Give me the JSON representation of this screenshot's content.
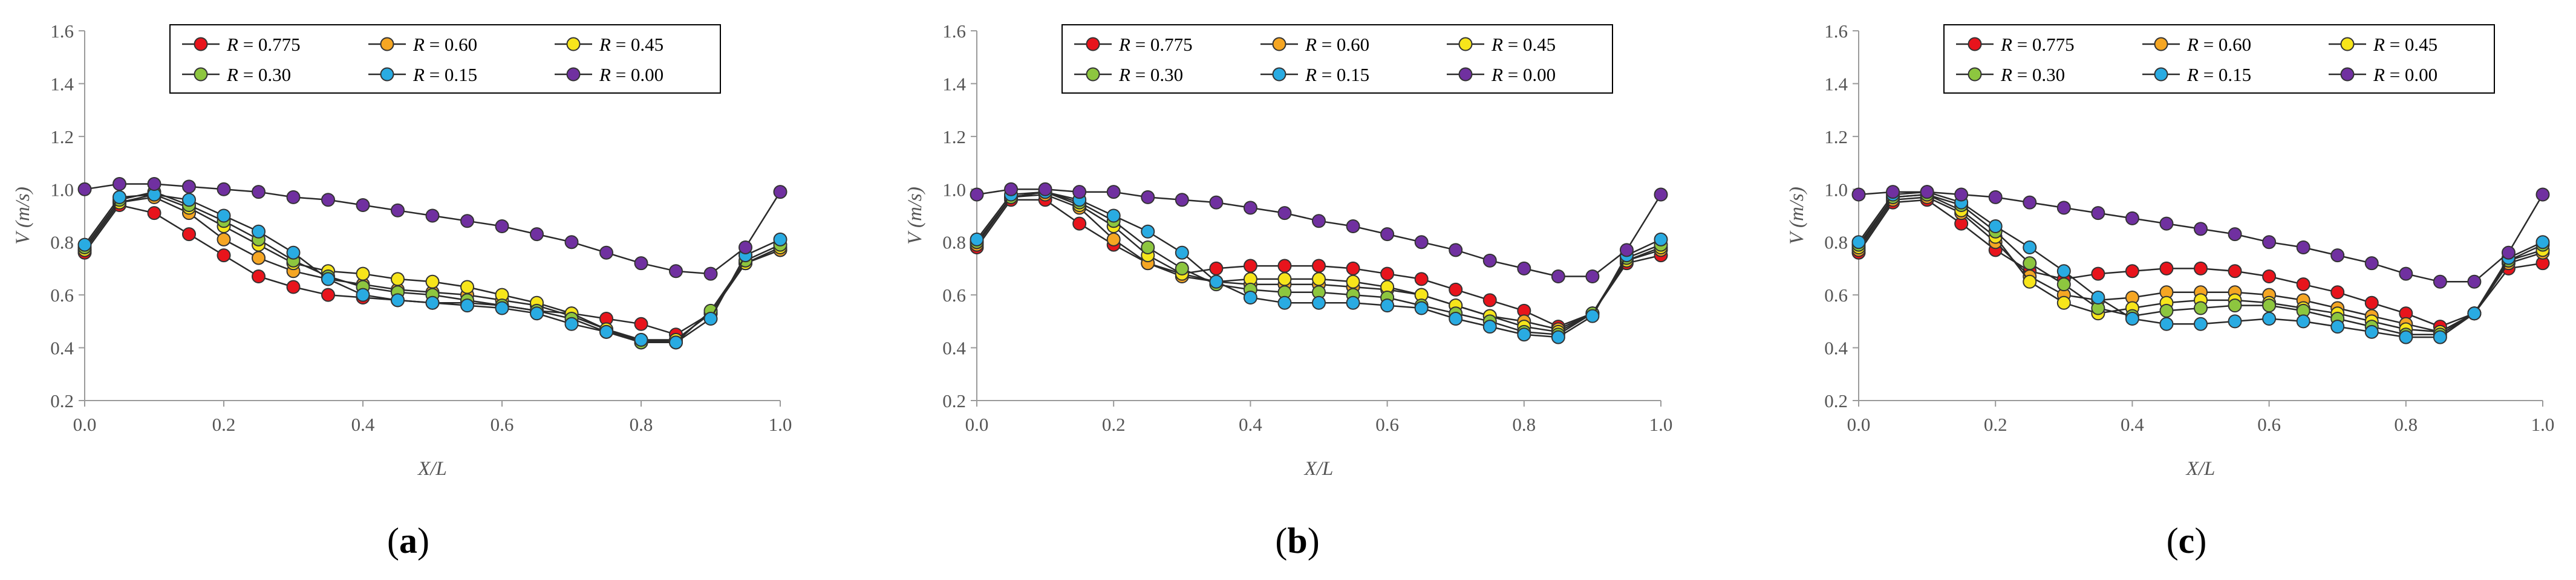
{
  "chart_data": [
    {
      "type": "line",
      "panel_label": "a",
      "xlabel": "X/L",
      "ylabel": "V (m/s)",
      "xlim": [
        0.0,
        1.0
      ],
      "ylim": [
        0.2,
        1.6
      ],
      "xticks": [
        "0.0",
        "0.2",
        "0.4",
        "0.6",
        "0.8",
        "1.0"
      ],
      "yticks": [
        "0.2",
        "0.4",
        "0.6",
        "0.8",
        "1.0",
        "1.2",
        "1.4",
        "1.6"
      ],
      "legend_position": "top",
      "x": [
        0,
        0.05,
        0.1,
        0.15,
        0.2,
        0.25,
        0.3,
        0.35,
        0.4,
        0.45,
        0.5,
        0.55,
        0.6,
        0.65,
        0.7,
        0.75,
        0.8,
        0.85,
        0.9,
        0.95,
        1.0
      ],
      "series": [
        {
          "name": "R = 0.775",
          "var": "R",
          "val": "0.775",
          "color": "#e8141c",
          "values": [
            0.76,
            0.94,
            0.91,
            0.83,
            0.75,
            0.67,
            0.63,
            0.6,
            0.59,
            0.58,
            0.57,
            0.57,
            0.56,
            0.54,
            0.53,
            0.51,
            0.49,
            0.45,
            0.53,
            0.72,
            0.77
          ]
        },
        {
          "name": "R = 0.60",
          "var": "R",
          "val": "0.60",
          "color": "#f5a623",
          "values": [
            0.77,
            0.95,
            0.97,
            0.91,
            0.81,
            0.74,
            0.69,
            0.66,
            0.64,
            0.62,
            0.61,
            0.6,
            0.58,
            0.56,
            0.52,
            0.47,
            0.42,
            0.43,
            0.53,
            0.72,
            0.77
          ]
        },
        {
          "name": "R = 0.45",
          "var": "R",
          "val": "0.45",
          "color": "#f7e51b",
          "values": [
            0.77,
            0.95,
            0.98,
            0.93,
            0.86,
            0.79,
            0.72,
            0.69,
            0.68,
            0.66,
            0.65,
            0.63,
            0.6,
            0.57,
            0.53,
            0.47,
            0.43,
            0.43,
            0.53,
            0.72,
            0.78
          ]
        },
        {
          "name": "R = 0.30",
          "var": "R",
          "val": "0.30",
          "color": "#8dc63f",
          "values": [
            0.78,
            0.96,
            0.99,
            0.94,
            0.88,
            0.81,
            0.73,
            0.67,
            0.63,
            0.61,
            0.6,
            0.58,
            0.56,
            0.54,
            0.51,
            0.46,
            0.42,
            0.42,
            0.54,
            0.73,
            0.79
          ]
        },
        {
          "name": "R = 0.15",
          "var": "R",
          "val": "0.15",
          "color": "#29abe2",
          "values": [
            0.79,
            0.97,
            0.98,
            0.96,
            0.9,
            0.84,
            0.76,
            0.66,
            0.6,
            0.58,
            0.57,
            0.56,
            0.55,
            0.53,
            0.49,
            0.46,
            0.43,
            0.42,
            0.51,
            0.75,
            0.81
          ]
        },
        {
          "name": "R = 0.00",
          "var": "R",
          "val": "0.00",
          "color": "#7030a0",
          "values": [
            1.0,
            1.02,
            1.02,
            1.01,
            1.0,
            0.99,
            0.97,
            0.96,
            0.94,
            0.92,
            0.9,
            0.88,
            0.86,
            0.83,
            0.8,
            0.76,
            0.72,
            0.69,
            0.68,
            0.78,
            0.99
          ]
        }
      ]
    },
    {
      "type": "line",
      "panel_label": "b",
      "xlabel": "X/L",
      "ylabel": "V (m/s)",
      "xlim": [
        0.0,
        1.0
      ],
      "ylim": [
        0.2,
        1.6
      ],
      "xticks": [
        "0.0",
        "0.2",
        "0.4",
        "0.6",
        "0.8",
        "1.0"
      ],
      "yticks": [
        "0.2",
        "0.4",
        "0.6",
        "0.8",
        "1.0",
        "1.2",
        "1.4",
        "1.6"
      ],
      "legend_position": "top",
      "x": [
        0,
        0.05,
        0.1,
        0.15,
        0.2,
        0.25,
        0.3,
        0.35,
        0.4,
        0.45,
        0.5,
        0.55,
        0.6,
        0.65,
        0.7,
        0.75,
        0.8,
        0.85,
        0.9,
        0.95,
        1.0
      ],
      "series": [
        {
          "name": "R = 0.775",
          "var": "R",
          "val": "0.775",
          "color": "#e8141c",
          "values": [
            0.78,
            0.96,
            0.96,
            0.87,
            0.79,
            0.72,
            0.68,
            0.7,
            0.71,
            0.71,
            0.71,
            0.7,
            0.68,
            0.66,
            0.62,
            0.58,
            0.54,
            0.48,
            0.53,
            0.72,
            0.75
          ]
        },
        {
          "name": "R = 0.60",
          "var": "R",
          "val": "0.60",
          "color": "#f5a623",
          "values": [
            0.79,
            0.97,
            0.98,
            0.93,
            0.81,
            0.72,
            0.67,
            0.65,
            0.64,
            0.64,
            0.64,
            0.63,
            0.62,
            0.6,
            0.56,
            0.52,
            0.5,
            0.47,
            0.53,
            0.73,
            0.77
          ]
        },
        {
          "name": "R = 0.45",
          "var": "R",
          "val": "0.45",
          "color": "#f7e51b",
          "values": [
            0.8,
            0.97,
            0.99,
            0.94,
            0.86,
            0.75,
            0.68,
            0.65,
            0.66,
            0.66,
            0.66,
            0.65,
            0.63,
            0.6,
            0.56,
            0.52,
            0.48,
            0.46,
            0.53,
            0.73,
            0.78
          ]
        },
        {
          "name": "R = 0.30",
          "var": "R",
          "val": "0.30",
          "color": "#8dc63f",
          "values": [
            0.8,
            0.97,
            0.99,
            0.95,
            0.88,
            0.78,
            0.7,
            0.64,
            0.62,
            0.61,
            0.61,
            0.6,
            0.59,
            0.56,
            0.53,
            0.5,
            0.46,
            0.45,
            0.53,
            0.74,
            0.79
          ]
        },
        {
          "name": "R = 0.15",
          "var": "R",
          "val": "0.15",
          "color": "#29abe2",
          "values": [
            0.81,
            0.98,
            0.99,
            0.96,
            0.9,
            0.84,
            0.76,
            0.65,
            0.59,
            0.57,
            0.57,
            0.57,
            0.56,
            0.55,
            0.51,
            0.48,
            0.45,
            0.44,
            0.52,
            0.75,
            0.81
          ]
        },
        {
          "name": "R = 0.00",
          "var": "R",
          "val": "0.00",
          "color": "#7030a0",
          "values": [
            0.98,
            1.0,
            1.0,
            0.99,
            0.99,
            0.97,
            0.96,
            0.95,
            0.93,
            0.91,
            0.88,
            0.86,
            0.83,
            0.8,
            0.77,
            0.73,
            0.7,
            0.67,
            0.67,
            0.77,
            0.98
          ]
        }
      ]
    },
    {
      "type": "line",
      "panel_label": "c",
      "xlabel": "X/L",
      "ylabel": "V (m/s)",
      "xlim": [
        0.0,
        1.0
      ],
      "ylim": [
        0.2,
        1.6
      ],
      "xticks": [
        "0.0",
        "0.2",
        "0.4",
        "0.6",
        "0.8",
        "1.0"
      ],
      "yticks": [
        "0.2",
        "0.4",
        "0.6",
        "0.8",
        "1.0",
        "1.2",
        "1.4",
        "1.6"
      ],
      "legend_position": "top",
      "x": [
        0,
        0.05,
        0.1,
        0.15,
        0.2,
        0.25,
        0.3,
        0.35,
        0.4,
        0.45,
        0.5,
        0.55,
        0.6,
        0.65,
        0.7,
        0.75,
        0.8,
        0.85,
        0.9,
        0.95,
        1.0
      ],
      "series": [
        {
          "name": "R = 0.775",
          "var": "R",
          "val": "0.775",
          "color": "#e8141c",
          "values": [
            0.76,
            0.95,
            0.96,
            0.87,
            0.77,
            0.69,
            0.66,
            0.68,
            0.69,
            0.7,
            0.7,
            0.69,
            0.67,
            0.64,
            0.61,
            0.57,
            0.53,
            0.48,
            0.53,
            0.7,
            0.72
          ]
        },
        {
          "name": "R = 0.60",
          "var": "R",
          "val": "0.60",
          "color": "#f5a623",
          "values": [
            0.77,
            0.96,
            0.97,
            0.91,
            0.8,
            0.67,
            0.6,
            0.58,
            0.59,
            0.61,
            0.61,
            0.61,
            0.6,
            0.58,
            0.55,
            0.52,
            0.49,
            0.46,
            0.53,
            0.72,
            0.76
          ]
        },
        {
          "name": "R = 0.45",
          "var": "R",
          "val": "0.45",
          "color": "#f7e51b",
          "values": [
            0.78,
            0.97,
            0.98,
            0.92,
            0.82,
            0.65,
            0.57,
            0.53,
            0.55,
            0.57,
            0.58,
            0.58,
            0.57,
            0.55,
            0.53,
            0.5,
            0.47,
            0.46,
            0.53,
            0.73,
            0.77
          ]
        },
        {
          "name": "R = 0.30",
          "var": "R",
          "val": "0.30",
          "color": "#8dc63f",
          "values": [
            0.79,
            0.97,
            0.98,
            0.94,
            0.84,
            0.72,
            0.64,
            0.55,
            0.52,
            0.54,
            0.55,
            0.56,
            0.56,
            0.54,
            0.51,
            0.48,
            0.45,
            0.45,
            0.53,
            0.73,
            0.79
          ]
        },
        {
          "name": "R = 0.15",
          "var": "R",
          "val": "0.15",
          "color": "#29abe2",
          "values": [
            0.8,
            0.98,
            0.99,
            0.95,
            0.86,
            0.78,
            0.69,
            0.59,
            0.51,
            0.49,
            0.49,
            0.5,
            0.51,
            0.5,
            0.48,
            0.46,
            0.44,
            0.44,
            0.53,
            0.74,
            0.8
          ]
        },
        {
          "name": "R = 0.00",
          "var": "R",
          "val": "0.00",
          "color": "#7030a0",
          "values": [
            0.98,
            0.99,
            0.99,
            0.98,
            0.97,
            0.95,
            0.93,
            0.91,
            0.89,
            0.87,
            0.85,
            0.83,
            0.8,
            0.78,
            0.75,
            0.72,
            0.68,
            0.65,
            0.65,
            0.76,
            0.98
          ]
        }
      ]
    }
  ]
}
